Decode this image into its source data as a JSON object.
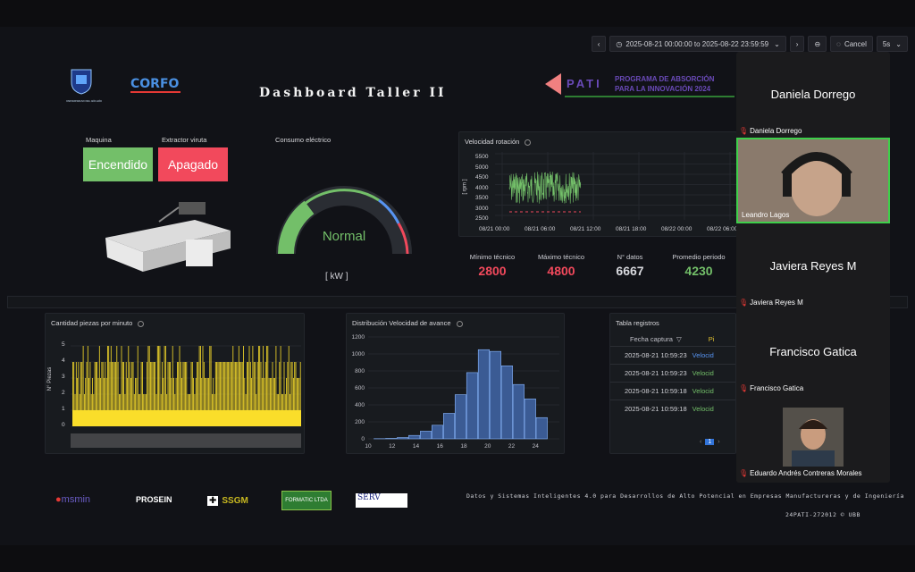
{
  "topbar": {
    "time_range": "2025-08-21 00:00:00 to 2025-08-22 23:59:59",
    "cancel_label": "Cancel",
    "refresh_interval": "5s"
  },
  "logos": {
    "university": "UNIVERSIDAD DEL BÍO-BÍO",
    "corfo": "CORFO",
    "pati": "PATI",
    "pati_subtitle_1": "PROGRAMA DE ABSORCIÓN",
    "pati_subtitle_2": "PARA LA INNOVACIÓN 2024"
  },
  "dashboard": {
    "title": "Dashboard Taller II"
  },
  "machine": {
    "maquina_label": "Maquina",
    "maquina_state": "Encendido",
    "extractor_label": "Extractor viruta",
    "extractor_state": "Apagado"
  },
  "gauge": {
    "title": "Consumo eléctrico",
    "status": "Normal",
    "unit": "[ kW ]"
  },
  "rotation_panel": {
    "title": "Velocidad rotación",
    "ylabel": "[ rpm ]",
    "y_ticks": [
      "5500",
      "5000",
      "4500",
      "4000",
      "3500",
      "3000",
      "2500"
    ],
    "x_ticks": [
      "08/21 00:00",
      "08/21 06:00",
      "08/21 12:00",
      "08/21 18:00",
      "08/22 00:00",
      "08/22 06:00"
    ]
  },
  "stats": [
    {
      "label": "Mínimo técnico",
      "value": "2800",
      "color": "#f2495c"
    },
    {
      "label": "Máximo técnico",
      "value": "4800",
      "color": "#f2495c"
    },
    {
      "label": "N° datos",
      "value": "6667",
      "color": "#d8d9de"
    },
    {
      "label": "Promedio periodo",
      "value": "4230",
      "color": "#73bf69"
    }
  ],
  "pieces_panel": {
    "title": "Cantidad piezas por minuto",
    "ylabel": "N° Piezas",
    "y_ticks": [
      "5",
      "4",
      "3",
      "2",
      "1",
      "0"
    ]
  },
  "dist_panel": {
    "title": "Distribución Velocidad de avance",
    "y_ticks": [
      "1200",
      "1000",
      "800",
      "600",
      "400",
      "200",
      "0"
    ],
    "x_ticks": [
      "10",
      "12",
      "14",
      "16",
      "18",
      "20",
      "22",
      "24"
    ]
  },
  "table_panel": {
    "title": "Tabla registros",
    "header": "Fecha captura",
    "header2": "Pi",
    "rows": [
      {
        "date": "2025-08-21 10:59:23",
        "col2": "Velocid"
      },
      {
        "date": "2025-08-21 10:59:23",
        "col2": "Velocid"
      },
      {
        "date": "2025-08-21 10:59:18",
        "col2": "Velocid"
      },
      {
        "date": "2025-08-21 10:59:18",
        "col2": "Velocid"
      }
    ],
    "page": "1"
  },
  "footer": {
    "logos": [
      "msmin",
      "PROSEIN",
      "SSGM",
      "FORMATIC LTDA",
      "SERV"
    ],
    "description": "Datos y Sistemas Inteligentes 4.0 para Desarrollos de Alto Potencial en Empresas Manufactureras y de Ingeniería",
    "code": "24PATI-272012 © UBB"
  },
  "participants": [
    {
      "name": "Daniela Dorrego",
      "video": false
    },
    {
      "name": "Leandro Lagos",
      "video": true
    },
    {
      "name": "Javiera Reyes M",
      "video": false
    },
    {
      "name": "Francisco Gatica",
      "video": false
    },
    {
      "name": "Eduardo Andrés Contreras Morales",
      "video": true
    }
  ],
  "chart_data": [
    {
      "type": "bar",
      "title": "Distribución Velocidad de avance",
      "categories": [
        "10.5",
        "11.5",
        "12.5",
        "13.5",
        "14.5",
        "15.5",
        "16.5",
        "17.5",
        "18.5",
        "19.5",
        "20.5",
        "21.5",
        "22.5",
        "23.5",
        "24.5"
      ],
      "values": [
        2,
        5,
        15,
        40,
        90,
        160,
        300,
        520,
        780,
        1050,
        1030,
        860,
        640,
        470,
        250
      ],
      "ylim": [
        0,
        1200
      ]
    }
  ]
}
